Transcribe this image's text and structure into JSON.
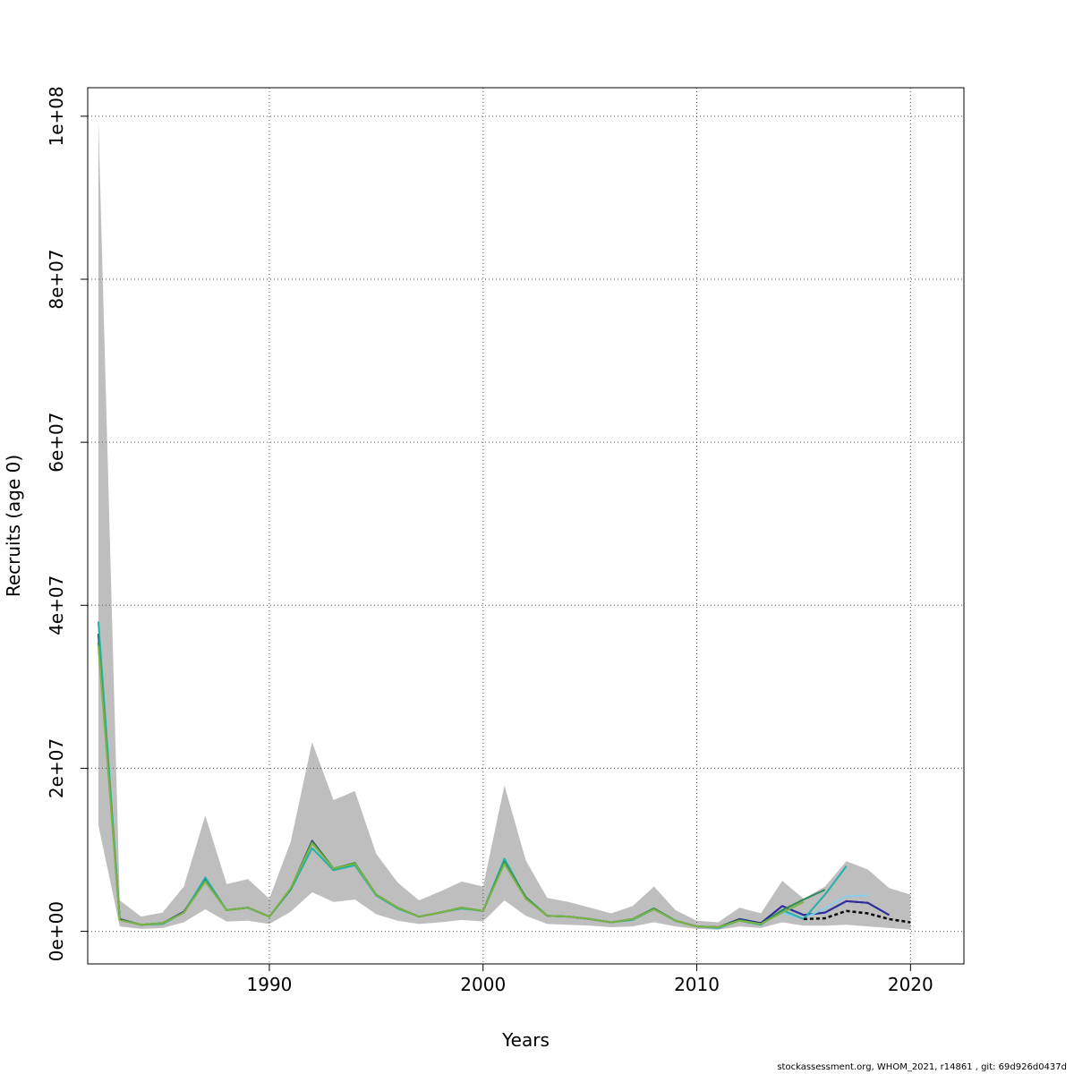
{
  "chart_data": {
    "type": "line",
    "title": "",
    "xlabel": "Years",
    "ylabel": "Recruits (age 0)",
    "xlim": [
      1981.5,
      2022.5
    ],
    "ylim": [
      -4000000,
      103500000
    ],
    "x_ticks": [
      1990,
      2000,
      2010,
      2020
    ],
    "x_tick_labels": [
      "1990",
      "2000",
      "2010",
      "2020"
    ],
    "y_ticks": [
      0,
      20000000,
      40000000,
      60000000,
      80000000,
      100000000
    ],
    "y_tick_labels": [
      "0e+00",
      "2e+07",
      "4e+07",
      "6e+07",
      "8e+07",
      "1e+08"
    ],
    "grid": true,
    "confidence_band": {
      "color": "#bebebe",
      "x": [
        1982,
        1983,
        1984,
        1985,
        1986,
        1987,
        1988,
        1989,
        1990,
        1991,
        1992,
        1993,
        1994,
        1995,
        1996,
        1997,
        1998,
        1999,
        2000,
        2001,
        2002,
        2003,
        2004,
        2005,
        2006,
        2007,
        2008,
        2009,
        2010,
        2011,
        2012,
        2013,
        2014,
        2015,
        2016,
        2017,
        2018,
        2019,
        2020
      ],
      "upper": [
        99500000,
        3800000,
        1800000,
        2300000,
        5500000,
        14200000,
        5800000,
        6400000,
        4000000,
        11000000,
        23200000,
        16100000,
        17200000,
        9500000,
        6000000,
        3800000,
        4900000,
        6100000,
        5500000,
        17900000,
        8700000,
        4100000,
        3600000,
        2900000,
        2200000,
        3100000,
        5500000,
        2600000,
        1300000,
        1100000,
        2900000,
        2200000,
        6200000,
        4000000,
        5500000,
        8600000,
        7600000,
        5300000,
        4500000
      ],
      "lower": [
        13000000,
        600000,
        300000,
        400000,
        1100000,
        2700000,
        1200000,
        1300000,
        900000,
        2400000,
        4800000,
        3600000,
        3900000,
        2100000,
        1300000,
        900000,
        1100000,
        1400000,
        1200000,
        3800000,
        1900000,
        900000,
        800000,
        700000,
        500000,
        600000,
        1100000,
        600000,
        300000,
        200000,
        600000,
        400000,
        1100000,
        700000,
        700000,
        800000,
        600000,
        400000,
        200000
      ]
    },
    "series": [
      {
        "color": "#1a1a6e",
        "x": [
          1982,
          1983,
          1984,
          1985,
          1986,
          1987,
          1988,
          1989,
          1990,
          1991,
          1992,
          1993,
          1994,
          1995,
          1996,
          1997,
          1998,
          1999,
          2000,
          2001,
          2002,
          2003,
          2004,
          2005,
          2006,
          2007,
          2008,
          2009,
          2010,
          2011,
          2012,
          2013,
          2014,
          2015,
          2016,
          2017,
          2018,
          2019
        ],
        "values": [
          36500000,
          1500000,
          800000,
          1000000,
          2400000,
          6300000,
          2600000,
          2900000,
          1800000,
          5200000,
          11100000,
          7700000,
          8300000,
          4500000,
          2900000,
          1800000,
          2300000,
          2900000,
          2500000,
          8500000,
          4100000,
          1900000,
          1800000,
          1500000,
          1100000,
          1500000,
          2800000,
          1300000,
          600000,
          500000,
          1500000,
          1000000,
          3100000,
          2000000,
          2300000,
          3700000,
          3500000,
          2000000
        ]
      },
      {
        "color": "#2d2d9e",
        "x": [
          2012,
          2013,
          2014,
          2015,
          2016,
          2017,
          2018,
          2019
        ],
        "values": [
          1500000,
          1000000,
          3100000,
          2000000,
          2300000,
          3700000,
          3500000,
          2000000
        ]
      },
      {
        "color": "#87ceeb",
        "x": [
          2014,
          2015,
          2016,
          2017,
          2018
        ],
        "values": [
          2200000,
          1600000,
          2800000,
          4300000,
          4400000
        ]
      },
      {
        "color": "#20b2aa",
        "x": [
          1982,
          1983,
          1984,
          1985,
          1986,
          1987,
          1988,
          1989,
          1990,
          1991,
          1992,
          1993,
          1994,
          1995,
          1996,
          1997,
          1998,
          1999,
          2000,
          2001,
          2002,
          2003,
          2004,
          2005,
          2006,
          2007,
          2008,
          2009,
          2010,
          2011,
          2012,
          2013,
          2014,
          2015,
          2016,
          2017
        ],
        "values": [
          38000000,
          1400000,
          800000,
          900000,
          2300000,
          6600000,
          2600000,
          2900000,
          1800000,
          5100000,
          10200000,
          7500000,
          8100000,
          4400000,
          2800000,
          1800000,
          2300000,
          2800000,
          2500000,
          8900000,
          4100000,
          1900000,
          1800000,
          1500000,
          1100000,
          1400000,
          2700000,
          1300000,
          600000,
          400000,
          1300000,
          800000,
          2600000,
          1500000,
          4500000,
          8000000
        ]
      },
      {
        "color": "#2e8b57",
        "x": [
          1982,
          1983,
          1984,
          1985,
          1986,
          1987,
          1988,
          1989,
          1990,
          1991,
          1992,
          1993,
          1994,
          1995,
          1996,
          1997,
          1998,
          1999,
          2000,
          2001,
          2002,
          2003,
          2004,
          2005,
          2006,
          2007,
          2008,
          2009,
          2010,
          2011,
          2012,
          2013,
          2014,
          2015,
          2016
        ],
        "values": [
          35500000,
          1400000,
          800000,
          1000000,
          2300000,
          6200000,
          2600000,
          2900000,
          1800000,
          5200000,
          11000000,
          7700000,
          8400000,
          4500000,
          2900000,
          1800000,
          2300000,
          2900000,
          2500000,
          8500000,
          4200000,
          1900000,
          1800000,
          1500000,
          1100000,
          1500000,
          2800000,
          1300000,
          600000,
          500000,
          1400000,
          900000,
          2600000,
          3900000,
          5100000
        ]
      },
      {
        "color": "#7cb342",
        "x": [
          1982,
          1983,
          1984,
          1985,
          1986,
          1987,
          1988,
          1989,
          1990,
          1991,
          1992,
          1993,
          1994,
          1995,
          1996,
          1997,
          1998,
          1999,
          2000,
          2001,
          2002,
          2003,
          2004,
          2005,
          2006,
          2007,
          2008,
          2009,
          2010,
          2011,
          2012,
          2013,
          2014,
          2015
        ],
        "values": [
          35000000,
          1400000,
          800000,
          1000000,
          2300000,
          6100000,
          2600000,
          2900000,
          1800000,
          5300000,
          10800000,
          7700000,
          8300000,
          4500000,
          2900000,
          1800000,
          2300000,
          2900000,
          2500000,
          8300000,
          4000000,
          1900000,
          1800000,
          1500000,
          1100000,
          1500000,
          2700000,
          1300000,
          600000,
          500000,
          1300000,
          900000,
          2300000,
          3600000
        ]
      },
      {
        "color": "#000000",
        "dashed": true,
        "x": [
          2015,
          2016,
          2017,
          2018,
          2019,
          2020
        ],
        "values": [
          1500000,
          1600000,
          2500000,
          2200000,
          1500000,
          1100000
        ]
      }
    ]
  },
  "footer": "stockassessment.org, WHOM_2021, r14861 , git: 69d926d0437d"
}
